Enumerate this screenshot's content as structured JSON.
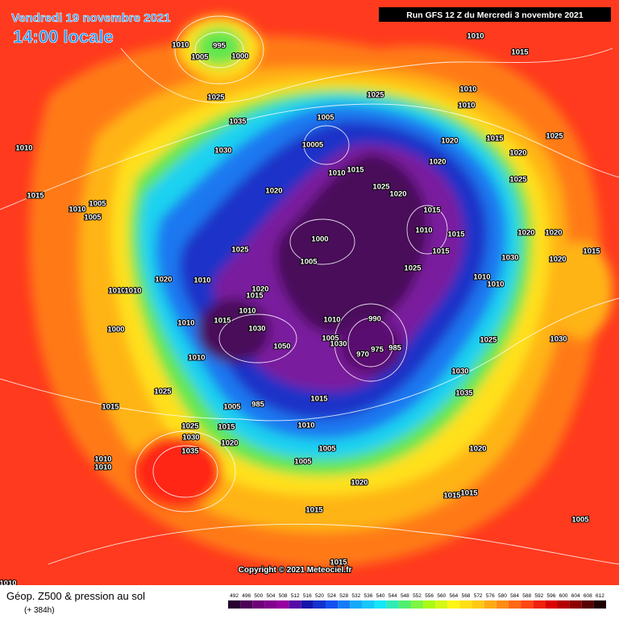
{
  "header": {
    "date": "Vendredi 19 novembre 2021",
    "time": "14:00 locale",
    "run": "Run GFS 12 Z du Mercredi 3 novembre 2021"
  },
  "footer": {
    "title": "Géop. Z500 & pression au sol",
    "lead": "(+ 384h)",
    "copyright": "Copyright © 2021 Meteociel.fr"
  },
  "scale": {
    "values": [
      492,
      496,
      500,
      504,
      508,
      512,
      516,
      520,
      524,
      528,
      532,
      536,
      540,
      544,
      548,
      552,
      556,
      560,
      564,
      568,
      572,
      576,
      580,
      584,
      588,
      592,
      596,
      600,
      604,
      608,
      612
    ]
  },
  "isobar_labels": [
    "995",
    "1000",
    "1005",
    "1010",
    "1010",
    "1015",
    "1025",
    "1035",
    "1025",
    "1030",
    "1010",
    "1015",
    "1005",
    "1010",
    "1005",
    "1005",
    "10005",
    "1010",
    "1015",
    "1020",
    "1025",
    "1020",
    "1020",
    "1015",
    "1020",
    "1020",
    "1025",
    "1025",
    "1010",
    "1010",
    "1015",
    "1010",
    "1015",
    "1015",
    "1000",
    "1005",
    "1025",
    "1025",
    "1020",
    "1010",
    "1010",
    "1010",
    "1000",
    "1010",
    "1015",
    "1020",
    "1015",
    "1010",
    "1030",
    "1050",
    "1010",
    "990",
    "1005",
    "1030",
    "985",
    "975",
    "970",
    "1025",
    "1030",
    "1020",
    "1020",
    "1020",
    "1015",
    "1030",
    "1010",
    "1010",
    "1030",
    "1035",
    "1010",
    "1025",
    "1015",
    "1025",
    "1030",
    "1035",
    "1015",
    "1020",
    "985",
    "1005",
    "1015",
    "1010",
    "1005",
    "1005",
    "1020",
    "1015",
    "1015",
    "1020",
    "1015",
    "1010",
    "1010",
    "1005",
    "1015",
    "1010"
  ]
}
